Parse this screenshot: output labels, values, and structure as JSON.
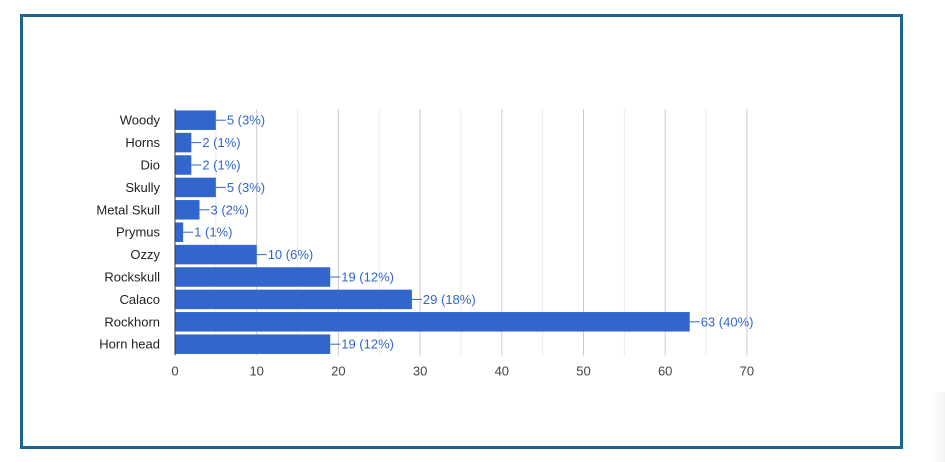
{
  "chart_data": {
    "type": "bar",
    "orientation": "horizontal",
    "title": "",
    "xlabel": "",
    "ylabel": "",
    "categories": [
      "Woody",
      "Horns",
      "Dio",
      "Skully",
      "Metal Skull",
      "Prymus",
      "Ozzy",
      "Rockskull",
      "Calaco",
      "Rockhorn",
      "Horn head"
    ],
    "values": [
      5,
      2,
      2,
      5,
      3,
      1,
      10,
      19,
      29,
      63,
      19
    ],
    "data_labels": [
      "5 (3%)",
      "2 (1%)",
      "2 (1%)",
      "5 (3%)",
      "3 (2%)",
      "1 (1%)",
      "10 (6%)",
      "19 (12%)",
      "29 (18%)",
      "63 (40%)",
      "19 (12%)"
    ],
    "xlim": [
      0,
      70
    ],
    "xticks": [
      "0",
      "10",
      "20",
      "30",
      "40",
      "50",
      "60",
      "70"
    ],
    "grid": true,
    "bar_color": "#3366cc",
    "label_color": "#3366cc",
    "frame_color": "#1b6690"
  }
}
